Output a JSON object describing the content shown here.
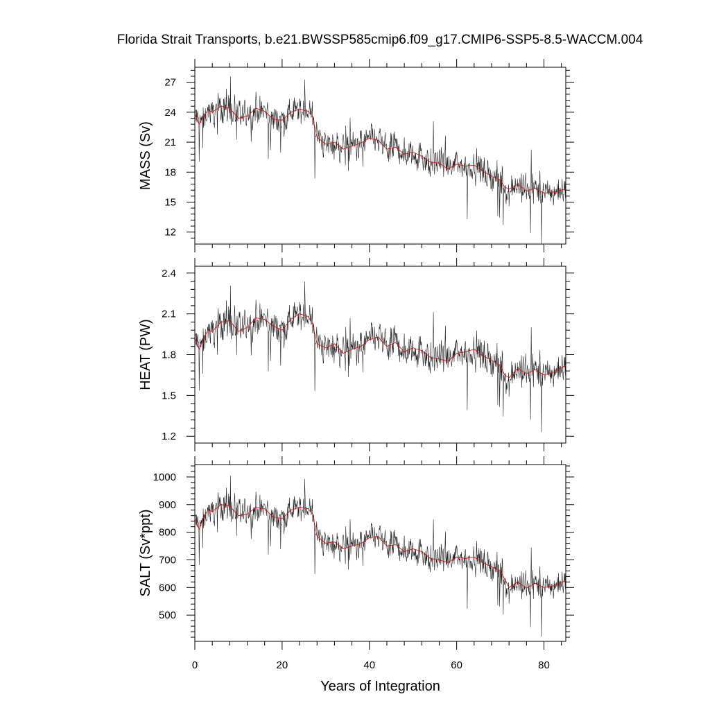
{
  "title": "Florida Strait Transports, b.e21.BWSSP585cmip6.f09_g17.CMIP6-SSP5-8.5-WACCM.004",
  "chart_data": {
    "type": "line",
    "xlabel": "Years of Integration",
    "xlim": [
      0,
      85
    ],
    "xticks": [
      0,
      20,
      40,
      60,
      80
    ],
    "series_names": [
      "annual / monthly transport (black)",
      "smoothed mean (red)"
    ],
    "panels": [
      {
        "ylabel": "MASS (Sv)",
        "ylim": [
          10.8,
          28.5
        ],
        "yticks": [
          12,
          15,
          18,
          21,
          24,
          27
        ],
        "smooth": {
          "x": [
            0,
            1,
            2,
            3,
            4,
            6,
            8,
            10,
            12,
            14,
            16,
            18,
            20,
            22,
            24,
            26,
            27,
            28,
            30,
            32,
            34,
            36,
            38,
            40,
            42,
            44,
            46,
            48,
            50,
            52,
            54,
            56,
            58,
            60,
            62,
            64,
            66,
            68,
            70,
            71,
            72,
            74,
            76,
            78,
            80,
            82,
            85
          ],
          "values": [
            23.8,
            22.8,
            23.6,
            24.2,
            24.0,
            24.6,
            24.4,
            23.4,
            23.6,
            24.4,
            24.1,
            23.3,
            23.2,
            24.0,
            24.3,
            24.1,
            23.5,
            21.5,
            20.8,
            21.0,
            20.3,
            20.6,
            20.9,
            21.4,
            21.2,
            20.3,
            20.5,
            19.8,
            20.0,
            19.6,
            19.0,
            18.9,
            18.3,
            18.8,
            18.6,
            18.7,
            18.1,
            17.6,
            17.2,
            16.5,
            16.3,
            16.8,
            16.1,
            16.4,
            15.9,
            16.0,
            16.3
          ]
        },
        "noise_amplitude": 1.6
      },
      {
        "ylabel": "HEAT (PW)",
        "ylim": [
          1.15,
          2.45
        ],
        "yticks": [
          1.2,
          1.5,
          1.8,
          2.1,
          2.4
        ],
        "smooth": {
          "x": [
            0,
            1,
            2,
            3,
            4,
            6,
            8,
            10,
            12,
            14,
            16,
            18,
            20,
            22,
            24,
            26,
            27,
            28,
            30,
            32,
            34,
            36,
            38,
            40,
            42,
            44,
            46,
            48,
            50,
            52,
            54,
            56,
            58,
            60,
            62,
            64,
            66,
            68,
            70,
            71,
            72,
            74,
            76,
            78,
            80,
            82,
            85
          ],
          "values": [
            1.92,
            1.84,
            1.92,
            1.98,
            1.97,
            2.04,
            2.05,
            1.97,
            2.0,
            2.07,
            2.06,
            2.01,
            1.98,
            2.06,
            2.1,
            2.08,
            2.02,
            1.88,
            1.85,
            1.88,
            1.81,
            1.84,
            1.86,
            1.91,
            1.93,
            1.86,
            1.89,
            1.82,
            1.85,
            1.83,
            1.78,
            1.77,
            1.75,
            1.81,
            1.82,
            1.84,
            1.79,
            1.76,
            1.72,
            1.65,
            1.63,
            1.7,
            1.66,
            1.69,
            1.65,
            1.67,
            1.72
          ]
        },
        "noise_amplitude": 0.13
      },
      {
        "ylabel": "SALT (Sv*ppt)",
        "ylim": [
          405,
          1045
        ],
        "yticks": [
          500,
          600,
          700,
          800,
          900,
          1000
        ],
        "smooth": {
          "x": [
            0,
            1,
            2,
            3,
            4,
            6,
            8,
            10,
            12,
            14,
            16,
            18,
            20,
            22,
            24,
            26,
            27,
            28,
            30,
            32,
            34,
            36,
            38,
            40,
            42,
            44,
            46,
            48,
            50,
            52,
            54,
            56,
            58,
            60,
            62,
            64,
            66,
            68,
            70,
            71,
            72,
            74,
            76,
            78,
            80,
            82,
            85
          ],
          "values": [
            850,
            810,
            855,
            880,
            875,
            900,
            895,
            860,
            865,
            890,
            885,
            855,
            850,
            880,
            890,
            885,
            865,
            785,
            760,
            765,
            740,
            750,
            758,
            780,
            785,
            750,
            755,
            730,
            740,
            730,
            705,
            700,
            690,
            710,
            705,
            710,
            690,
            675,
            660,
            630,
            600,
            620,
            598,
            615,
            600,
            605,
            625
          ]
        },
        "noise_amplitude": 55
      }
    ]
  }
}
